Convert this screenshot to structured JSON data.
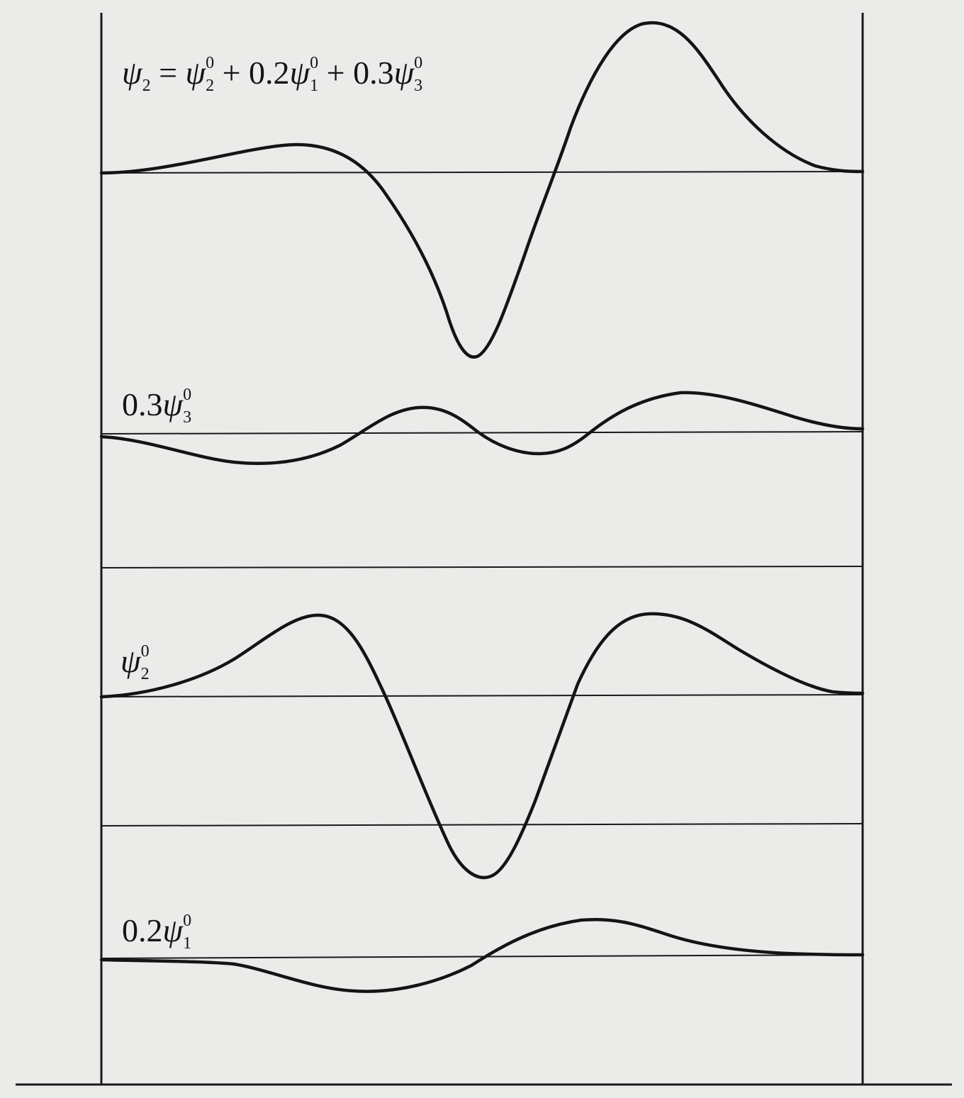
{
  "figure": {
    "panels": [
      {
        "id": "sum",
        "label": [
          {
            "t": "psi"
          },
          {
            "t": "sub",
            "v": "2"
          },
          {
            "t": "txt",
            "v": " = "
          },
          {
            "t": "psi"
          },
          {
            "t": "supsub",
            "sup": "0",
            "sub": "2"
          },
          {
            "t": "txt",
            "v": " + 0.2"
          },
          {
            "t": "psi"
          },
          {
            "t": "supsub",
            "sup": "0",
            "sub": "1"
          },
          {
            "t": "txt",
            "v": " + 0.3"
          },
          {
            "t": "psi"
          },
          {
            "t": "supsub",
            "sup": "0",
            "sub": "3"
          }
        ]
      },
      {
        "id": "psi3-scaled",
        "label": [
          {
            "t": "txt",
            "v": "0.3"
          },
          {
            "t": "psi"
          },
          {
            "t": "supsub",
            "sup": "0",
            "sub": "3"
          }
        ]
      },
      {
        "id": "psi2",
        "label": [
          {
            "t": "psi"
          },
          {
            "t": "supsub",
            "sup": "0",
            "sub": "2"
          }
        ]
      },
      {
        "id": "psi1-scaled",
        "label": [
          {
            "t": "txt",
            "v": "0.2"
          },
          {
            "t": "psi"
          },
          {
            "t": "supsub",
            "sup": "0",
            "sub": "1"
          }
        ]
      }
    ],
    "colors": {
      "background": "#ebebea",
      "ink": "#141414"
    }
  }
}
